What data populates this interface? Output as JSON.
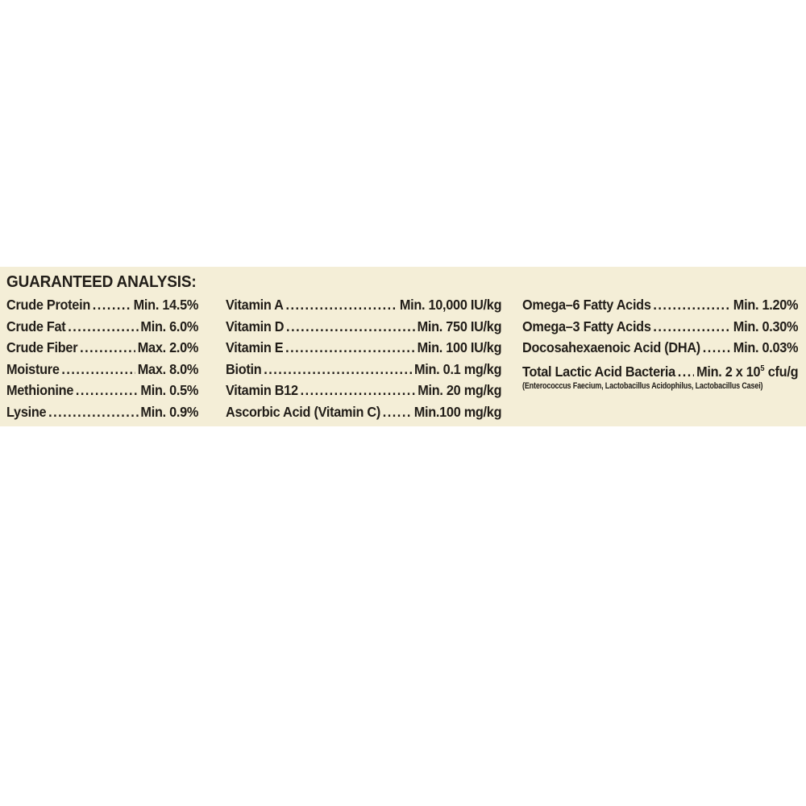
{
  "colors": {
    "panel_background": "#f4eed7",
    "text": "#211d18",
    "page_background": "#ffffff"
  },
  "panel": {
    "heading": "GUARANTEED ANALYSIS:",
    "leader_dots": "..........................................................................................",
    "columns": [
      {
        "rows": [
          {
            "label": "Crude Protein",
            "value": "Min. 14.5%"
          },
          {
            "label": "Crude Fat",
            "value": "Min. 6.0%"
          },
          {
            "label": "Crude Fiber",
            "value": "Max. 2.0%"
          },
          {
            "label": "Moisture",
            "value": "Max. 8.0%"
          },
          {
            "label": "Methionine",
            "value": "Min. 0.5%"
          },
          {
            "label": "Lysine",
            "value": "Min. 0.9%"
          }
        ]
      },
      {
        "rows": [
          {
            "label": "Vitamin A",
            "value": "Min. 10,000 IU/kg"
          },
          {
            "label": "Vitamin D",
            "value": "Min. 750 IU/kg"
          },
          {
            "label": "Vitamin E",
            "value": "Min. 100 IU/kg"
          },
          {
            "label": "Biotin",
            "value": "Min. 0.1 mg/kg"
          },
          {
            "label": "Vitamin B12",
            "value": "Min. 20 mg/kg"
          },
          {
            "label": "Ascorbic Acid (Vitamin C)",
            "value": "Min.100 mg/kg"
          }
        ]
      },
      {
        "rows": [
          {
            "label": "Omega–6 Fatty Acids",
            "value": "Min. 1.20%"
          },
          {
            "label": "Omega–3 Fatty Acids",
            "value": "Min. 0.30%"
          },
          {
            "label": "Docosahexaenoic Acid (DHA)",
            "value": "Min. 0.03%"
          }
        ],
        "bacteria_row": {
          "label": "Total Lactic Acid Bacteria",
          "value_pre": "Min. 2 x 10",
          "value_sup": "5",
          "value_post": " cfu/g"
        },
        "note": "(Enterococcus Faecium, Lactobacillus Acidophilus, Lactobacillus Casei)"
      }
    ]
  }
}
